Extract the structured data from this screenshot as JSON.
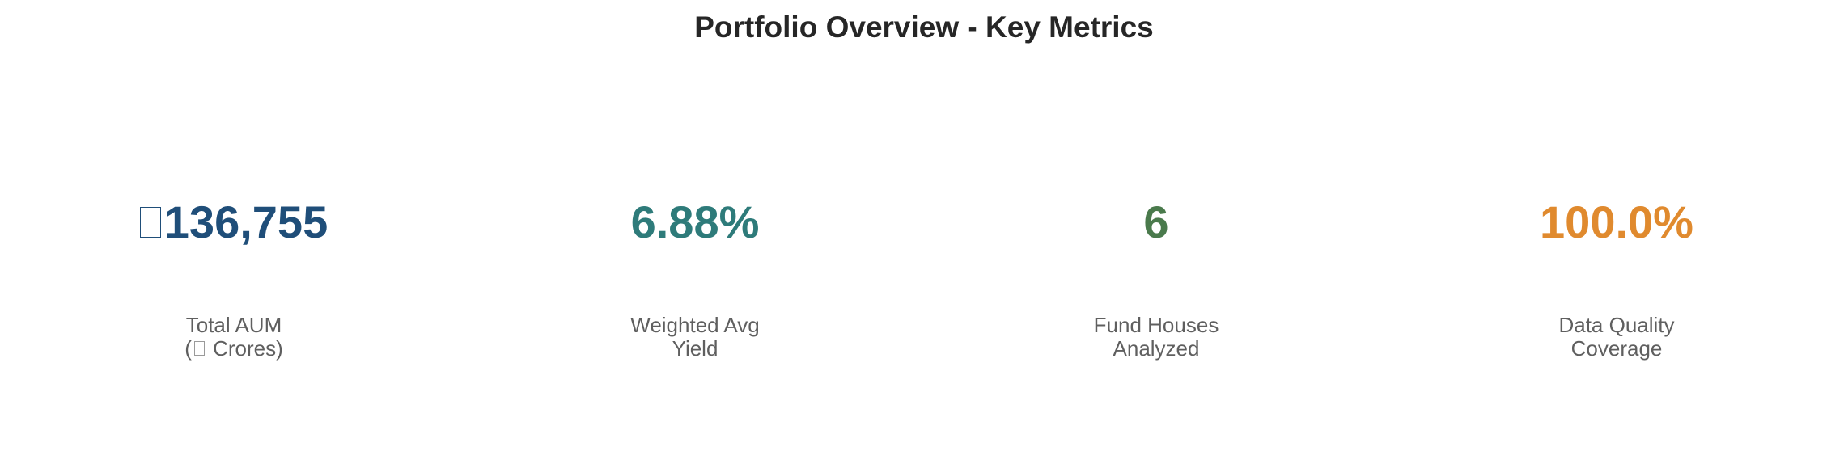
{
  "chart_data": {
    "type": "table",
    "title": "Portfolio Overview - Key Metrics",
    "metrics": [
      {
        "currency_symbol": "₹",
        "value": "136,755",
        "label_prefix": "Total AUM\n(",
        "label_suffix": " Crores)",
        "color": "#1F4E79"
      },
      {
        "value": "6.88%",
        "label": "Weighted Avg\nYield",
        "color": "#2E7B7A"
      },
      {
        "value": "6",
        "label": "Fund Houses\nAnalyzed",
        "color": "#4A7A4C"
      },
      {
        "value": "100.0%",
        "label": "Data Quality\nCoverage",
        "color": "#E08A2E"
      }
    ]
  }
}
